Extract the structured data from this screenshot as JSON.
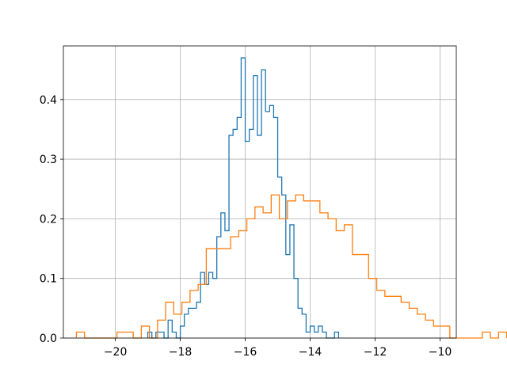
{
  "chart_data": {
    "type": "histogram",
    "title": "",
    "xlabel": "",
    "ylabel": "",
    "xlim": [
      -21.6,
      -9.5
    ],
    "ylim": [
      0,
      0.49
    ],
    "grid": true,
    "legend": "none",
    "xticks": [
      -20,
      -18,
      -16,
      -14,
      -12,
      -10
    ],
    "xtick_labels": [
      "−20",
      "−18",
      "−16",
      "−14",
      "−12",
      "−10"
    ],
    "yticks": [
      0.0,
      0.1,
      0.2,
      0.3,
      0.4
    ],
    "ytick_labels": [
      "0.0",
      "0.1",
      "0.2",
      "0.3",
      "0.4"
    ],
    "series": [
      {
        "color": "#1f77b4",
        "bin_start": -19.0,
        "bin_width": 0.125,
        "values": [
          0.01,
          0.0,
          0.01,
          0.01,
          0.0,
          0.03,
          0.01,
          0.0,
          0.02,
          0.04,
          0.05,
          0.05,
          0.06,
          0.11,
          0.09,
          0.11,
          0.1,
          0.17,
          0.21,
          0.18,
          0.34,
          0.35,
          0.37,
          0.47,
          0.33,
          0.35,
          0.44,
          0.34,
          0.45,
          0.38,
          0.39,
          0.37,
          0.27,
          0.24,
          0.14,
          0.19,
          0.1,
          0.05,
          0.04,
          0.01,
          0.02,
          0.01,
          0.02,
          0.01,
          0.0,
          0.0,
          0.01
        ]
      },
      {
        "color": "#ff7f0e",
        "bin_start": -21.2,
        "bin_width": 0.25,
        "values": [
          0.01,
          0.0,
          0.0,
          0.0,
          0.0,
          0.01,
          0.01,
          0.0,
          0.02,
          0.0,
          0.03,
          0.06,
          0.04,
          0.06,
          0.08,
          0.09,
          0.15,
          0.15,
          0.15,
          0.17,
          0.18,
          0.2,
          0.22,
          0.21,
          0.24,
          0.2,
          0.23,
          0.24,
          0.23,
          0.23,
          0.21,
          0.2,
          0.18,
          0.19,
          0.14,
          0.14,
          0.1,
          0.08,
          0.07,
          0.07,
          0.06,
          0.05,
          0.04,
          0.03,
          0.02,
          0.02,
          0.0,
          0.0,
          0.0,
          0.0,
          0.01,
          0.0,
          0.01
        ]
      }
    ]
  }
}
